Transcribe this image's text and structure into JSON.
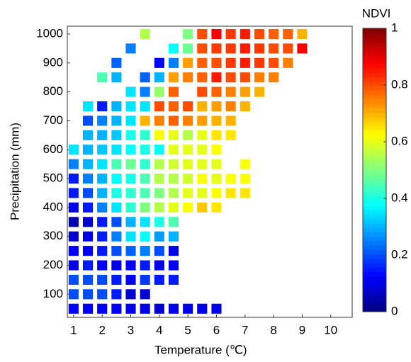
{
  "chart_data": {
    "type": "heatmap",
    "x_label": "Temperature (℃)",
    "y_label": "Precipitation (mm)",
    "colorbar_title": "NDVI",
    "colormap": "jet",
    "x": [
      1,
      1.5,
      2,
      2.5,
      3,
      3.5,
      4,
      4.5,
      5,
      5.5,
      6,
      6.5,
      7,
      7.5,
      8,
      8.5,
      9
    ],
    "y": [
      50,
      100,
      150,
      200,
      250,
      300,
      350,
      400,
      450,
      500,
      550,
      600,
      650,
      700,
      750,
      800,
      850,
      900,
      950,
      1000
    ],
    "values": [
      [
        0.12,
        0.12,
        0.12,
        0.12,
        0.1,
        0.1,
        0.08,
        0.1,
        0.1,
        0.1,
        0.1,
        null,
        null,
        null,
        null,
        null,
        null
      ],
      [
        0.2,
        0.2,
        0.2,
        0.15,
        0.08,
        0.08,
        null,
        null,
        null,
        null,
        null,
        null,
        null,
        null,
        null,
        null,
        null
      ],
      [
        0.2,
        0.2,
        0.2,
        0.15,
        0.12,
        0.18,
        0.15,
        0.15,
        null,
        null,
        null,
        null,
        null,
        null,
        null,
        null,
        null
      ],
      [
        0.1,
        0.15,
        0.12,
        0.1,
        0.12,
        0.15,
        0.1,
        0.12,
        null,
        null,
        null,
        null,
        null,
        null,
        null,
        null,
        null
      ],
      [
        0.12,
        0.12,
        0.15,
        0.2,
        0.22,
        0.25,
        0.2,
        0.1,
        null,
        null,
        null,
        null,
        null,
        null,
        null,
        null,
        null
      ],
      [
        0.08,
        0.1,
        0.15,
        0.25,
        0.35,
        0.38,
        0.28,
        0.3,
        null,
        null,
        null,
        null,
        null,
        null,
        null,
        null,
        null
      ],
      [
        0.05,
        0.08,
        0.15,
        0.2,
        0.3,
        0.35,
        0.4,
        0.45,
        null,
        null,
        null,
        null,
        null,
        null,
        null,
        null,
        null
      ],
      [
        0.1,
        0.15,
        0.25,
        0.35,
        0.42,
        0.5,
        0.55,
        0.6,
        0.62,
        0.68,
        0.65,
        null,
        null,
        null,
        null,
        null,
        null
      ],
      [
        0.15,
        0.2,
        0.3,
        0.4,
        0.42,
        0.45,
        0.5,
        0.55,
        0.6,
        0.6,
        0.62,
        0.65,
        0.65,
        null,
        null,
        null,
        null
      ],
      [
        0.15,
        0.25,
        0.3,
        0.38,
        0.4,
        0.45,
        0.55,
        0.55,
        0.58,
        0.62,
        0.6,
        0.62,
        0.62,
        null,
        null,
        null,
        null
      ],
      [
        0.25,
        0.3,
        0.35,
        0.45,
        0.48,
        0.42,
        0.55,
        0.58,
        0.6,
        0.6,
        0.6,
        null,
        0.62,
        null,
        null,
        null,
        null
      ],
      [
        0.35,
        0.3,
        0.32,
        0.35,
        0.38,
        0.4,
        0.38,
        0.6,
        0.6,
        0.6,
        0.62,
        null,
        null,
        null,
        null,
        null,
        null
      ],
      [
        null,
        0.3,
        0.3,
        0.32,
        0.4,
        0.42,
        0.62,
        0.6,
        0.55,
        0.6,
        0.65,
        0.65,
        null,
        null,
        null,
        null,
        null
      ],
      [
        null,
        0.2,
        0.25,
        0.3,
        0.35,
        0.7,
        0.75,
        0.78,
        0.75,
        0.72,
        0.7,
        0.7,
        null,
        null,
        null,
        null,
        null
      ],
      [
        null,
        0.35,
        0.15,
        0.3,
        0.35,
        0.35,
        0.8,
        0.78,
        0.8,
        0.7,
        0.72,
        0.75,
        0.7,
        null,
        null,
        null,
        null
      ],
      [
        null,
        null,
        null,
        null,
        0.35,
        0.25,
        0.52,
        0.78,
        null,
        0.8,
        0.78,
        0.75,
        0.72,
        0.7,
        null,
        null,
        null
      ],
      [
        null,
        null,
        0.45,
        0.3,
        null,
        0.22,
        0.3,
        0.72,
        0.75,
        0.78,
        0.85,
        0.8,
        0.8,
        0.75,
        0.75,
        null,
        null
      ],
      [
        null,
        null,
        null,
        0.22,
        null,
        null,
        0.12,
        0.25,
        0.72,
        0.78,
        0.8,
        0.82,
        0.85,
        0.82,
        0.8,
        0.75,
        null
      ],
      [
        null,
        null,
        null,
        null,
        0.25,
        null,
        null,
        0.38,
        0.48,
        0.8,
        0.82,
        0.82,
        0.85,
        0.82,
        0.8,
        0.8,
        0.88
      ],
      [
        null,
        null,
        null,
        null,
        null,
        0.55,
        null,
        null,
        0.5,
        0.8,
        0.88,
        0.82,
        0.85,
        0.8,
        0.78,
        0.78,
        0.7
      ]
    ],
    "xlim": [
      0.78,
      10.75
    ],
    "ylim": [
      20,
      1027
    ],
    "xticks": [
      1,
      2,
      3,
      4,
      5,
      6,
      7,
      8,
      9,
      10
    ],
    "yticks": [
      100,
      200,
      300,
      400,
      500,
      600,
      700,
      800,
      900,
      1000
    ],
    "clim": [
      0,
      1
    ],
    "cticks": [
      0,
      0.2,
      0.4,
      0.6,
      0.8,
      1
    ]
  }
}
